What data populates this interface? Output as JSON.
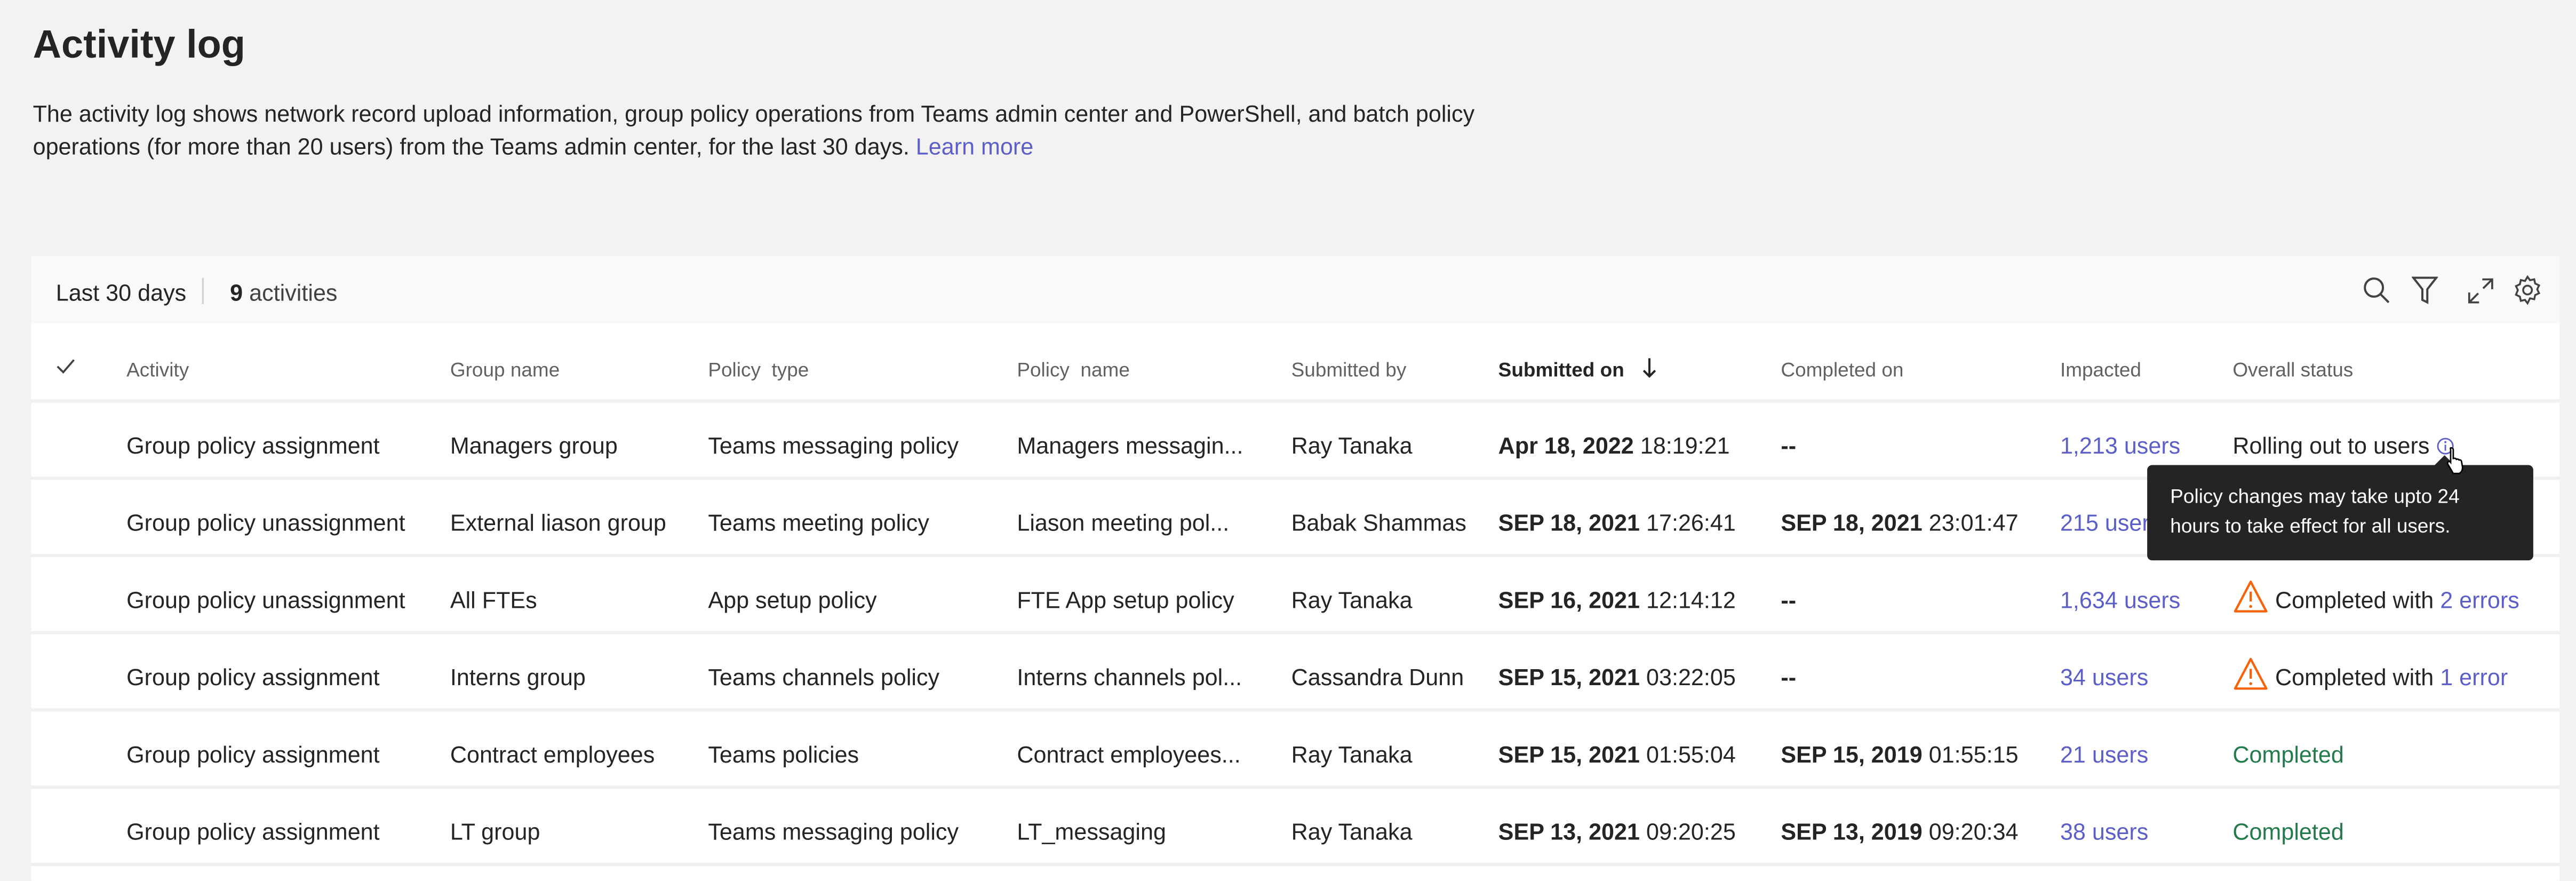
{
  "page": {
    "title": "Activity log",
    "description": "The activity log shows network record upload information, group policy operations from Teams admin center and PowerShell, and batch policy operations (for more than 20 users) from the Teams admin center, for the last 30 days.",
    "learn_more": "Learn more"
  },
  "toolbar": {
    "range": "Last 30 days",
    "count": "9",
    "count_label": "activities",
    "icons": [
      "search-icon",
      "filter-icon",
      "expand-icon",
      "settings-icon"
    ]
  },
  "table": {
    "columns": [
      "Activity",
      "Group name",
      "Policy  type",
      "Policy  name",
      "Submitted by",
      "Submitted on",
      "Completed on",
      "Impacted",
      "Overall status"
    ],
    "sort": {
      "column": "Submitted on",
      "direction": "descending"
    },
    "rows": [
      {
        "activity": "Group policy assignment",
        "group": "Managers group",
        "ptype": "Teams messaging policy",
        "pname": "Managers messagin...",
        "by": "Ray Tanaka",
        "sub_date": "Apr 18, 2022",
        "sub_time": "18:19:21",
        "comp_date": "--",
        "comp_time": "",
        "impacted": "1,213 users",
        "status": "Rolling out to users",
        "status_link": "",
        "status_kind": "rolling"
      },
      {
        "activity": "Group policy unassignment",
        "group": "External liason group",
        "ptype": "Teams meeting policy",
        "pname": "Liason meeting pol...",
        "by": "Babak Shammas",
        "sub_date": "SEP 18, 2021",
        "sub_time": "17:26:41",
        "comp_date": "SEP 18, 2021",
        "comp_time": "23:01:47",
        "impacted": "215 users",
        "status": "",
        "status_link": "",
        "status_kind": "hidden"
      },
      {
        "activity": "Group policy unassignment",
        "group": "All FTEs",
        "ptype": "App setup policy",
        "pname": "FTE App setup policy",
        "by": "Ray Tanaka",
        "sub_date": "SEP 16, 2021",
        "sub_time": "12:14:12",
        "comp_date": "--",
        "comp_time": "",
        "impacted": "1,634 users",
        "status": "Completed with",
        "status_link": "2 errors",
        "status_kind": "warning"
      },
      {
        "activity": "Group policy assignment",
        "group": "Interns group",
        "ptype": "Teams channels policy",
        "pname": "Interns channels pol...",
        "by": "Cassandra Dunn",
        "sub_date": "SEP 15, 2021",
        "sub_time": "03:22:05",
        "comp_date": "--",
        "comp_time": "",
        "impacted": "34 users",
        "status": "Completed with",
        "status_link": "1 error",
        "status_kind": "warning"
      },
      {
        "activity": "Group policy assignment",
        "group": "Contract employees",
        "ptype": "Teams policies",
        "pname": "Contract employees...",
        "by": "Ray Tanaka",
        "sub_date": "SEP 15, 2021",
        "sub_time": "01:55:04",
        "comp_date": "SEP 15, 2019",
        "comp_time": "01:55:15",
        "impacted": "21 users",
        "status": "Completed",
        "status_link": "",
        "status_kind": "completed"
      },
      {
        "activity": "Group policy assignment",
        "group": "LT group",
        "ptype": "Teams messaging policy",
        "pname": "LT_messaging",
        "by": "Ray Tanaka",
        "sub_date": "SEP 13, 2021",
        "sub_time": "09:20:25",
        "comp_date": "SEP 13, 2019",
        "comp_time": "09:20:34",
        "impacted": "38 users",
        "status": "Completed",
        "status_link": "",
        "status_kind": "completed"
      }
    ]
  },
  "tooltip": {
    "text": "Policy changes may take upto 24 hours to take effect for all users."
  },
  "colors": {
    "link": "#5b5fc7",
    "success": "#237b4b",
    "warning": "#f7630c",
    "tooltip_bg": "#242424"
  }
}
